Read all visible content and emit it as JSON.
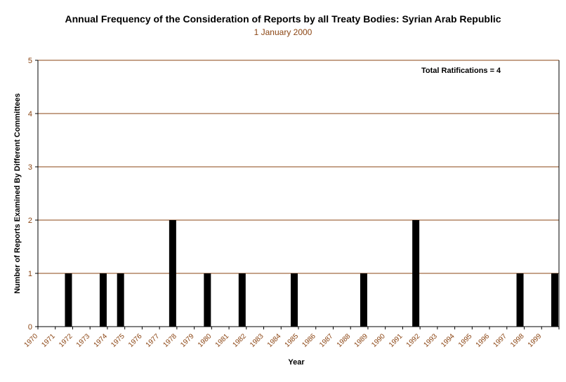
{
  "chart_data": {
    "type": "bar",
    "title": "Annual Frequency of the Consideration of Reports by all Treaty Bodies: Syrian Arab Republic",
    "subtitle": "1 January 2000",
    "xlabel": "Year",
    "ylabel": "Number of Reports Examined By Different Committees",
    "annotation": "Total Ratifications = 4",
    "ylim": [
      0,
      5
    ],
    "yticks": [
      0,
      1,
      2,
      3,
      4,
      5
    ],
    "grid": true,
    "legend": "none",
    "categories": [
      "1970",
      "1971",
      "1972",
      "1973",
      "1974",
      "1975",
      "1976",
      "1977",
      "1978",
      "1979",
      "1980",
      "1981",
      "1982",
      "1983",
      "1984",
      "1985",
      "1986",
      "1987",
      "1988",
      "1989",
      "1990",
      "1991",
      "1992",
      "1993",
      "1994",
      "1995",
      "1996",
      "1997",
      "1998",
      "1999"
    ],
    "values": [
      0,
      1,
      0,
      1,
      1,
      0,
      0,
      2,
      0,
      1,
      0,
      1,
      0,
      0,
      1,
      0,
      0,
      0,
      1,
      0,
      0,
      2,
      0,
      0,
      0,
      0,
      0,
      1,
      0,
      1
    ],
    "colors": {
      "bar": "#000000",
      "axis": "#000000",
      "grid": "#8B4513",
      "title": "#000000",
      "subtitle": "#8B4513",
      "tick_label": "#8B4513"
    }
  }
}
